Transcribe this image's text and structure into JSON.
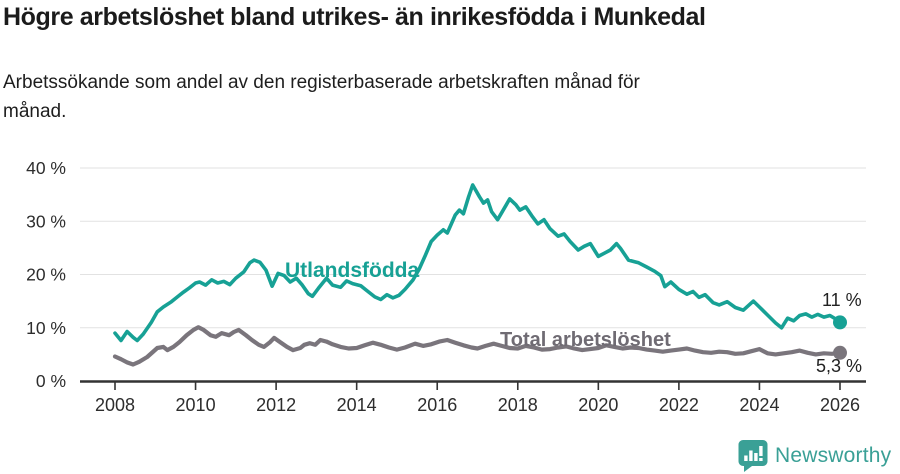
{
  "header": {
    "title": "Högre arbetslöshet bland utrikes- än inrikesfödda i Munkedal",
    "subtitle_lines": [
      "Arbetssökande som andel av den registerbaserade arbetskraften månad för",
      "månad."
    ]
  },
  "chart_data": {
    "type": "line",
    "title": "Högre arbetslöshet bland utrikes- än inrikesfödda i Munkedal",
    "subtitle": "Arbetssökande som andel av den registerbaserade arbetskraften månad för månad.",
    "grid": "horizontal",
    "grid_color": "#e2e2e2",
    "axis_color": "#333333",
    "x_axis": {
      "range": [
        2008,
        2026
      ],
      "tick_values": [
        2008,
        2010,
        2012,
        2014,
        2016,
        2018,
        2020,
        2022,
        2024,
        2026
      ],
      "ticks": [
        "2008",
        "2010",
        "2012",
        "2014",
        "2016",
        "2018",
        "2020",
        "2022",
        "2024",
        "2026"
      ]
    },
    "y_axis": {
      "range": [
        0,
        40
      ],
      "unit": "%",
      "tick_values": [
        0,
        10,
        20,
        30,
        40
      ],
      "tick_labels": [
        "0 %",
        "10 %",
        "20 %",
        "30 %",
        "40 %"
      ]
    },
    "series": [
      {
        "name": "Utlandsfödda",
        "color": "#17a195",
        "end_label": "11 %",
        "end_value": 11,
        "points": [
          [
            2008.0,
            9.0
          ],
          [
            2008.15,
            7.6
          ],
          [
            2008.3,
            9.3
          ],
          [
            2008.45,
            8.2
          ],
          [
            2008.55,
            7.6
          ],
          [
            2008.7,
            8.8
          ],
          [
            2008.9,
            11.0
          ],
          [
            2009.05,
            13.0
          ],
          [
            2009.2,
            13.9
          ],
          [
            2009.4,
            14.9
          ],
          [
            2009.55,
            15.8
          ],
          [
            2009.7,
            16.7
          ],
          [
            2009.85,
            17.5
          ],
          [
            2010.0,
            18.4
          ],
          [
            2010.1,
            18.6
          ],
          [
            2010.25,
            18.0
          ],
          [
            2010.4,
            19.0
          ],
          [
            2010.55,
            18.4
          ],
          [
            2010.7,
            18.7
          ],
          [
            2010.85,
            18.1
          ],
          [
            2011.0,
            19.3
          ],
          [
            2011.2,
            20.5
          ],
          [
            2011.35,
            22.2
          ],
          [
            2011.45,
            22.7
          ],
          [
            2011.6,
            22.3
          ],
          [
            2011.75,
            20.8
          ],
          [
            2011.9,
            17.8
          ],
          [
            2012.05,
            20.2
          ],
          [
            2012.2,
            19.8
          ],
          [
            2012.35,
            18.6
          ],
          [
            2012.5,
            19.3
          ],
          [
            2012.65,
            18.0
          ],
          [
            2012.8,
            16.4
          ],
          [
            2012.9,
            15.9
          ],
          [
            2013.05,
            17.4
          ],
          [
            2013.25,
            19.3
          ],
          [
            2013.4,
            18.0
          ],
          [
            2013.6,
            17.6
          ],
          [
            2013.75,
            18.8
          ],
          [
            2013.9,
            18.3
          ],
          [
            2014.1,
            17.9
          ],
          [
            2014.25,
            17.0
          ],
          [
            2014.45,
            15.8
          ],
          [
            2014.6,
            15.3
          ],
          [
            2014.75,
            16.2
          ],
          [
            2014.9,
            15.6
          ],
          [
            2015.05,
            16.1
          ],
          [
            2015.2,
            17.2
          ],
          [
            2015.4,
            19.0
          ],
          [
            2015.55,
            21.0
          ],
          [
            2015.7,
            23.5
          ],
          [
            2015.85,
            26.2
          ],
          [
            2016.0,
            27.4
          ],
          [
            2016.15,
            28.4
          ],
          [
            2016.25,
            27.8
          ],
          [
            2016.45,
            31.2
          ],
          [
            2016.55,
            32.1
          ],
          [
            2016.65,
            31.4
          ],
          [
            2016.78,
            34.6
          ],
          [
            2016.88,
            36.8
          ],
          [
            2017.05,
            34.6
          ],
          [
            2017.15,
            33.4
          ],
          [
            2017.25,
            34.0
          ],
          [
            2017.35,
            31.8
          ],
          [
            2017.5,
            30.3
          ],
          [
            2017.6,
            31.6
          ],
          [
            2017.8,
            34.2
          ],
          [
            2017.95,
            33.1
          ],
          [
            2018.05,
            32.1
          ],
          [
            2018.2,
            32.7
          ],
          [
            2018.35,
            31.0
          ],
          [
            2018.5,
            29.5
          ],
          [
            2018.65,
            30.3
          ],
          [
            2018.8,
            28.6
          ],
          [
            2019.0,
            27.2
          ],
          [
            2019.15,
            27.6
          ],
          [
            2019.3,
            26.2
          ],
          [
            2019.5,
            24.6
          ],
          [
            2019.65,
            25.3
          ],
          [
            2019.8,
            25.8
          ],
          [
            2020.0,
            23.4
          ],
          [
            2020.15,
            24.0
          ],
          [
            2020.3,
            24.6
          ],
          [
            2020.45,
            25.8
          ],
          [
            2020.55,
            24.9
          ],
          [
            2020.75,
            22.7
          ],
          [
            2021.0,
            22.2
          ],
          [
            2021.2,
            21.4
          ],
          [
            2021.4,
            20.6
          ],
          [
            2021.55,
            19.8
          ],
          [
            2021.65,
            17.7
          ],
          [
            2021.8,
            18.6
          ],
          [
            2022.0,
            17.2
          ],
          [
            2022.2,
            16.3
          ],
          [
            2022.35,
            16.8
          ],
          [
            2022.5,
            15.7
          ],
          [
            2022.65,
            16.2
          ],
          [
            2022.85,
            14.7
          ],
          [
            2023.0,
            14.3
          ],
          [
            2023.2,
            14.9
          ],
          [
            2023.4,
            13.8
          ],
          [
            2023.6,
            13.3
          ],
          [
            2023.85,
            15.0
          ],
          [
            2024.0,
            13.9
          ],
          [
            2024.2,
            12.4
          ],
          [
            2024.4,
            10.9
          ],
          [
            2024.55,
            10.0
          ],
          [
            2024.7,
            11.8
          ],
          [
            2024.85,
            11.3
          ],
          [
            2025.0,
            12.3
          ],
          [
            2025.15,
            12.6
          ],
          [
            2025.3,
            12.0
          ],
          [
            2025.45,
            12.5
          ],
          [
            2025.6,
            12.0
          ],
          [
            2025.75,
            12.3
          ],
          [
            2025.9,
            11.6
          ],
          [
            2026.0,
            11.0
          ]
        ]
      },
      {
        "name": "Total arbetslöshet",
        "color": "#7a757c",
        "end_label": "5,3 %",
        "end_value": 5.3,
        "points": [
          [
            2008.0,
            4.6
          ],
          [
            2008.15,
            4.1
          ],
          [
            2008.3,
            3.5
          ],
          [
            2008.45,
            3.1
          ],
          [
            2008.6,
            3.6
          ],
          [
            2008.8,
            4.5
          ],
          [
            2009.05,
            6.2
          ],
          [
            2009.2,
            6.4
          ],
          [
            2009.3,
            5.8
          ],
          [
            2009.45,
            6.4
          ],
          [
            2009.6,
            7.3
          ],
          [
            2009.78,
            8.6
          ],
          [
            2009.95,
            9.6
          ],
          [
            2010.07,
            10.1
          ],
          [
            2010.2,
            9.6
          ],
          [
            2010.37,
            8.6
          ],
          [
            2010.5,
            8.3
          ],
          [
            2010.65,
            9.0
          ],
          [
            2010.83,
            8.6
          ],
          [
            2010.95,
            9.2
          ],
          [
            2011.07,
            9.6
          ],
          [
            2011.25,
            8.6
          ],
          [
            2011.4,
            7.7
          ],
          [
            2011.57,
            6.8
          ],
          [
            2011.7,
            6.4
          ],
          [
            2011.85,
            7.3
          ],
          [
            2011.95,
            8.1
          ],
          [
            2012.1,
            7.3
          ],
          [
            2012.27,
            6.4
          ],
          [
            2012.42,
            5.8
          ],
          [
            2012.6,
            6.2
          ],
          [
            2012.7,
            6.8
          ],
          [
            2012.84,
            7.1
          ],
          [
            2012.97,
            6.8
          ],
          [
            2013.1,
            7.7
          ],
          [
            2013.25,
            7.4
          ],
          [
            2013.4,
            6.9
          ],
          [
            2013.6,
            6.4
          ],
          [
            2013.8,
            6.1
          ],
          [
            2014.0,
            6.2
          ],
          [
            2014.2,
            6.7
          ],
          [
            2014.4,
            7.2
          ],
          [
            2014.6,
            6.8
          ],
          [
            2014.8,
            6.3
          ],
          [
            2015.0,
            5.9
          ],
          [
            2015.2,
            6.3
          ],
          [
            2015.45,
            7.0
          ],
          [
            2015.65,
            6.6
          ],
          [
            2015.85,
            6.9
          ],
          [
            2016.05,
            7.4
          ],
          [
            2016.25,
            7.7
          ],
          [
            2016.45,
            7.2
          ],
          [
            2016.65,
            6.7
          ],
          [
            2016.85,
            6.3
          ],
          [
            2017.0,
            6.1
          ],
          [
            2017.2,
            6.6
          ],
          [
            2017.4,
            7.0
          ],
          [
            2017.6,
            6.6
          ],
          [
            2017.8,
            6.2
          ],
          [
            2018.0,
            6.1
          ],
          [
            2018.2,
            6.6
          ],
          [
            2018.4,
            6.3
          ],
          [
            2018.6,
            5.9
          ],
          [
            2018.8,
            6.0
          ],
          [
            2019.0,
            6.3
          ],
          [
            2019.2,
            6.5
          ],
          [
            2019.4,
            6.1
          ],
          [
            2019.6,
            5.8
          ],
          [
            2019.8,
            6.0
          ],
          [
            2020.0,
            6.2
          ],
          [
            2020.2,
            6.7
          ],
          [
            2020.4,
            6.4
          ],
          [
            2020.6,
            6.1
          ],
          [
            2020.8,
            6.3
          ],
          [
            2021.0,
            6.2
          ],
          [
            2021.2,
            5.9
          ],
          [
            2021.4,
            5.7
          ],
          [
            2021.6,
            5.5
          ],
          [
            2021.8,
            5.7
          ],
          [
            2022.0,
            5.9
          ],
          [
            2022.2,
            6.1
          ],
          [
            2022.4,
            5.7
          ],
          [
            2022.6,
            5.4
          ],
          [
            2022.8,
            5.3
          ],
          [
            2023.0,
            5.5
          ],
          [
            2023.2,
            5.4
          ],
          [
            2023.4,
            5.1
          ],
          [
            2023.6,
            5.2
          ],
          [
            2023.8,
            5.6
          ],
          [
            2024.0,
            6.0
          ],
          [
            2024.2,
            5.2
          ],
          [
            2024.4,
            5.0
          ],
          [
            2024.6,
            5.2
          ],
          [
            2024.8,
            5.4
          ],
          [
            2025.0,
            5.7
          ],
          [
            2025.2,
            5.3
          ],
          [
            2025.4,
            5.0
          ],
          [
            2025.6,
            5.2
          ],
          [
            2025.8,
            5.1
          ],
          [
            2026.0,
            5.3
          ]
        ]
      }
    ],
    "legend_position": "inline-labels"
  },
  "footer": {
    "brand": "Newsworthy",
    "brand_color": "#3aa096",
    "logo_icon": "newsworthy-speech-bubble-bar-chart-icon"
  }
}
